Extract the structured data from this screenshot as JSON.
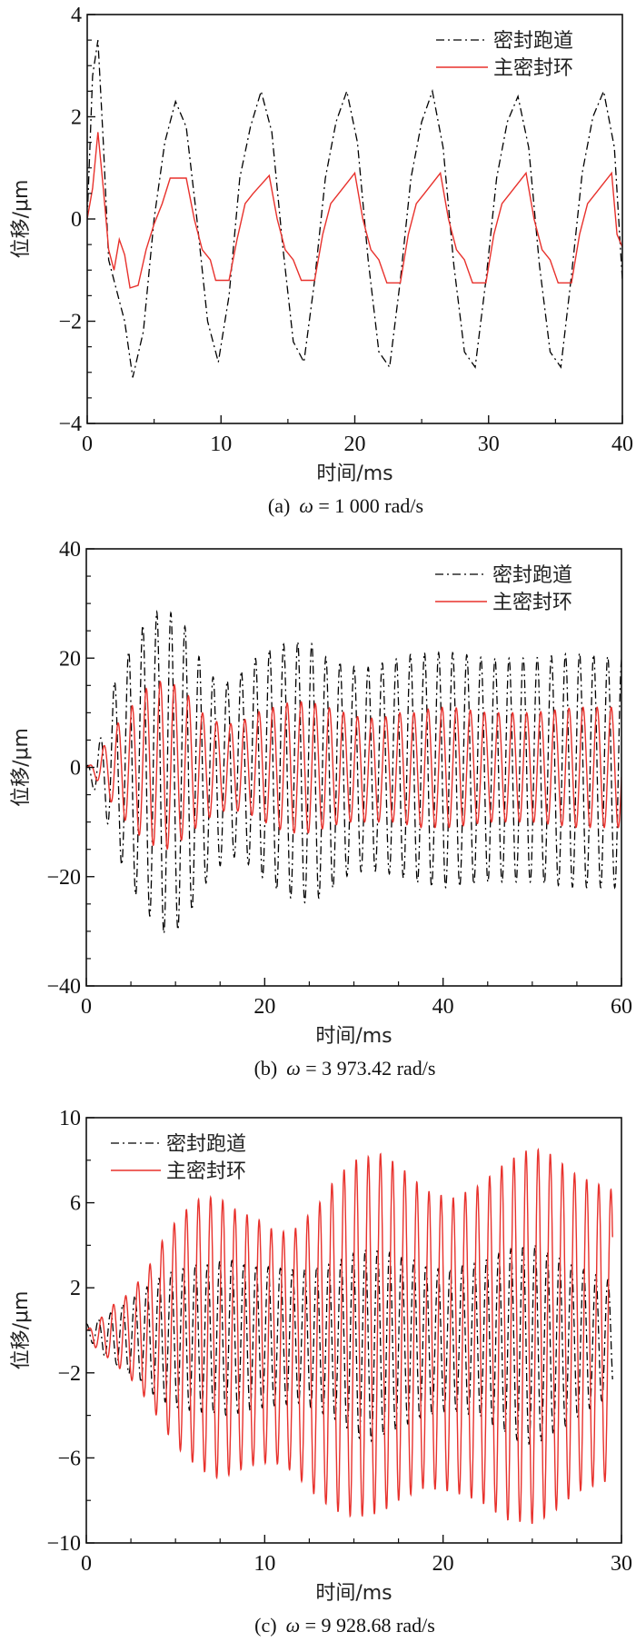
{
  "chart_data": [
    {
      "id": "a",
      "type": "line",
      "caption_prefix": "(a)",
      "caption_omega": "ω",
      "caption_value": " = 1 000 rad/s",
      "xlabel": "时间/ms",
      "ylabel": "位移/μm",
      "xlim": [
        0,
        40
      ],
      "ylim": [
        -4,
        4
      ],
      "xticks": [
        0,
        10,
        20,
        30,
        40
      ],
      "xtick_labels": [
        "0",
        "10",
        "20",
        "30",
        "40"
      ],
      "xminor": 5,
      "yticks": [
        -4,
        -2,
        0,
        2,
        4
      ],
      "ytick_labels": [
        "−4",
        "−2",
        "0",
        "2",
        "4"
      ],
      "yminor": 0.5,
      "legend": {
        "placement": "top-right",
        "entries": [
          "密封跑道",
          "主密封环"
        ]
      },
      "series": [
        {
          "name": "密封跑道",
          "style": "dash-dot",
          "color": "#000000",
          "x": [
            0,
            0.4,
            0.8,
            1.2,
            1.6,
            2.2,
            2.8,
            3.4,
            4.2,
            5.0,
            5.8,
            6.6,
            7.4,
            8.2,
            9.0,
            9.8,
            10.6,
            11.4,
            12.2,
            13.0,
            13.8,
            14.6,
            15.4,
            16.2,
            17.0,
            17.8,
            18.6,
            19.4,
            20.2,
            21.0,
            21.8,
            22.6,
            23.4,
            24.2,
            25.0,
            25.8,
            26.6,
            27.4,
            28.2,
            29.0,
            29.8,
            30.6,
            31.4,
            32.2,
            33.0,
            33.8,
            34.6,
            35.4,
            36.2,
            37.0,
            37.8,
            38.6,
            39.4,
            40.0
          ],
          "y": [
            0,
            2.8,
            3.5,
            1.5,
            -0.8,
            -1.4,
            -2.0,
            -3.1,
            -2.2,
            0.0,
            1.5,
            2.3,
            1.8,
            0.0,
            -2.0,
            -2.8,
            -1.5,
            0.8,
            1.8,
            2.5,
            1.7,
            -0.5,
            -2.4,
            -2.8,
            -1.2,
            0.8,
            1.9,
            2.5,
            1.5,
            -0.8,
            -2.6,
            -2.9,
            -1.2,
            0.8,
            1.9,
            2.5,
            1.4,
            -0.9,
            -2.6,
            -2.9,
            -1.2,
            0.8,
            1.9,
            2.4,
            1.4,
            -0.9,
            -2.6,
            -2.9,
            -1.1,
            0.9,
            2.0,
            2.5,
            1.4,
            -1.2
          ]
        },
        {
          "name": "主密封环",
          "style": "solid",
          "color": "#e8312c",
          "x": [
            0,
            0.4,
            0.8,
            1.2,
            1.6,
            2.0,
            2.4,
            2.8,
            3.2,
            3.8,
            4.4,
            5.0,
            5.6,
            6.2,
            7.4,
            8.0,
            8.6,
            9.2,
            9.6,
            10.6,
            11.2,
            11.8,
            12.4,
            13.6,
            14.2,
            14.8,
            15.4,
            16.0,
            17.0,
            17.6,
            18.2,
            18.8,
            20.0,
            20.6,
            21.2,
            21.8,
            22.4,
            23.4,
            24.0,
            24.6,
            25.2,
            26.4,
            27.0,
            27.6,
            28.2,
            28.8,
            29.8,
            30.4,
            31.0,
            31.6,
            32.8,
            33.4,
            34.0,
            34.6,
            35.2,
            36.2,
            36.8,
            37.4,
            38.0,
            39.2,
            39.6,
            40.0
          ],
          "y": [
            0,
            0.6,
            1.7,
            0.6,
            -0.6,
            -1.0,
            -0.4,
            -0.7,
            -1.35,
            -1.3,
            -0.6,
            -0.1,
            0.3,
            0.8,
            0.8,
            0.0,
            -0.6,
            -0.8,
            -1.2,
            -1.2,
            -0.4,
            0.3,
            0.5,
            0.85,
            0.0,
            -0.6,
            -0.8,
            -1.2,
            -1.2,
            -0.3,
            0.3,
            0.5,
            0.9,
            0.0,
            -0.6,
            -0.8,
            -1.25,
            -1.25,
            -0.3,
            0.3,
            0.5,
            0.9,
            0.0,
            -0.6,
            -0.8,
            -1.25,
            -1.25,
            -0.3,
            0.3,
            0.5,
            0.9,
            0.0,
            -0.6,
            -0.8,
            -1.25,
            -1.25,
            -0.3,
            0.3,
            0.5,
            0.9,
            -0.3,
            -0.55
          ]
        }
      ]
    },
    {
      "id": "b",
      "type": "line",
      "caption_prefix": "(b)",
      "caption_omega": "ω",
      "caption_value": " = 3 973.42 rad/s",
      "xlabel": "时间/ms",
      "ylabel": "位移/μm",
      "xlim": [
        0,
        60
      ],
      "ylim": [
        -40,
        40
      ],
      "xticks": [
        0,
        20,
        40,
        60
      ],
      "xtick_labels": [
        "0",
        "20",
        "40",
        "60"
      ],
      "xminor": 5,
      "yticks": [
        -40,
        -20,
        0,
        20,
        40
      ],
      "ytick_labels": [
        "−40",
        "−20",
        "0",
        "20",
        "40"
      ],
      "yminor": 5,
      "legend": {
        "placement": "top-right",
        "entries": [
          "密封跑道",
          "主密封环"
        ]
      },
      "series": [
        {
          "name": "密封跑道",
          "style": "dash-dot",
          "color": "#000000",
          "period_ms": 1.58,
          "envelope_t": [
            0,
            1,
            2,
            3,
            5,
            7,
            9,
            11,
            13,
            15,
            17,
            19,
            21,
            23,
            25,
            27,
            29,
            31,
            33,
            35,
            37,
            39,
            41,
            45,
            50,
            55,
            60
          ],
          "envelope_upper": [
            0,
            3,
            7,
            15,
            22,
            28,
            29,
            26,
            19,
            15,
            17,
            20,
            22,
            23,
            23,
            20,
            19,
            18,
            19,
            20,
            21,
            21,
            21,
            20,
            20,
            21,
            20
          ],
          "envelope_lower": [
            0,
            -5,
            -8,
            -14,
            -22,
            -27,
            -31,
            -29,
            -22,
            -18,
            -16,
            -19,
            -22,
            -24,
            -25,
            -23,
            -20,
            -19,
            -19,
            -20,
            -21,
            -22,
            -22,
            -21,
            -21,
            -22,
            -22
          ]
        },
        {
          "name": "主密封环",
          "style": "solid",
          "color": "#e8312c",
          "period_ms": 1.58,
          "envelope_t": [
            0,
            1,
            2,
            3,
            5,
            7,
            9,
            11,
            13,
            15,
            17,
            19,
            21,
            23,
            25,
            27,
            29,
            31,
            33,
            35,
            37,
            39,
            41,
            45,
            50,
            55,
            60
          ],
          "envelope_upper": [
            0,
            1,
            4,
            7,
            11,
            15,
            16,
            14,
            10,
            8,
            8,
            10,
            11,
            12,
            12,
            11,
            10,
            9,
            9,
            10,
            10,
            11,
            11,
            10,
            10,
            11,
            11
          ],
          "envelope_lower": [
            0,
            -2,
            -4,
            -7,
            -11,
            -14,
            -15,
            -13,
            -10,
            -8,
            -8,
            -9,
            -11,
            -12,
            -12,
            -11,
            -10,
            -10,
            -10,
            -10,
            -11,
            -11,
            -11,
            -10,
            -10,
            -11,
            -11
          ]
        }
      ]
    },
    {
      "id": "c",
      "type": "line",
      "caption_prefix": "(c)",
      "caption_omega": "ω",
      "caption_value": " = 9 928.68 rad/s",
      "xlabel": "时间/ms",
      "ylabel": "位移/μm",
      "xlim": [
        0,
        30
      ],
      "ylim": [
        -10,
        10
      ],
      "xticks": [
        0,
        10,
        20,
        30
      ],
      "xtick_labels": [
        "0",
        "10",
        "20",
        "30"
      ],
      "xminor": 2.5,
      "yticks": [
        -10,
        -6,
        -2,
        2,
        6,
        10
      ],
      "ytick_labels": [
        "−10",
        "−6",
        "−2",
        "2",
        "6",
        "10"
      ],
      "yminor": 2,
      "legend": {
        "placement": "top-left",
        "entries": [
          "密封跑道",
          "主密封环"
        ]
      },
      "series": [
        {
          "name": "密封跑道",
          "style": "dash-dot",
          "color": "#000000",
          "period_ms": 0.68,
          "envelope_t": [
            0,
            1,
            2,
            3,
            4,
            5,
            6,
            8,
            10,
            12,
            14,
            15,
            16,
            18,
            20,
            22,
            24,
            25,
            26,
            28,
            29.5
          ],
          "envelope_upper": [
            0.3,
            0.6,
            1.2,
            1.8,
            2.4,
            2.9,
            3.1,
            3.3,
            3.0,
            2.8,
            3.2,
            3.6,
            3.9,
            3.4,
            2.8,
            3.2,
            3.9,
            4.1,
            3.6,
            2.8,
            2.3
          ],
          "envelope_lower": [
            -0.3,
            -1.2,
            -1.8,
            -2.4,
            -3.2,
            -3.6,
            -3.8,
            -4.0,
            -3.6,
            -3.4,
            -4.2,
            -5.0,
            -5.2,
            -4.4,
            -3.8,
            -4.0,
            -5.1,
            -5.4,
            -5.0,
            -3.8,
            -3.0
          ]
        },
        {
          "name": "主密封环",
          "style": "solid",
          "color": "#e8312c",
          "period_ms": 0.68,
          "envelope_t": [
            0,
            0.5,
            1.5,
            2.5,
            3.5,
            4.5,
            5.5,
            6.5,
            7.5,
            8.5,
            9.5,
            10.5,
            11.5,
            13,
            14,
            15,
            16.5,
            17.5,
            19,
            20.5,
            22,
            23.5,
            25,
            26,
            27.5,
            29.5
          ],
          "envelope_upper": [
            0,
            0.3,
            1.2,
            1.8,
            3.0,
            4.6,
            5.6,
            6.3,
            6.2,
            5.6,
            5.3,
            4.7,
            4.6,
            5.9,
            7.2,
            8.0,
            8.3,
            7.8,
            6.6,
            6.2,
            6.8,
            7.9,
            8.6,
            8.3,
            7.3,
            6.6
          ],
          "envelope_lower": [
            0,
            -0.8,
            -1.5,
            -2.3,
            -3.4,
            -4.8,
            -5.9,
            -6.6,
            -7.0,
            -6.6,
            -6.3,
            -6.2,
            -6.6,
            -7.9,
            -8.5,
            -8.8,
            -8.6,
            -8.0,
            -7.4,
            -7.6,
            -8.0,
            -8.9,
            -9.1,
            -8.7,
            -7.6,
            -7.0
          ]
        }
      ]
    }
  ]
}
